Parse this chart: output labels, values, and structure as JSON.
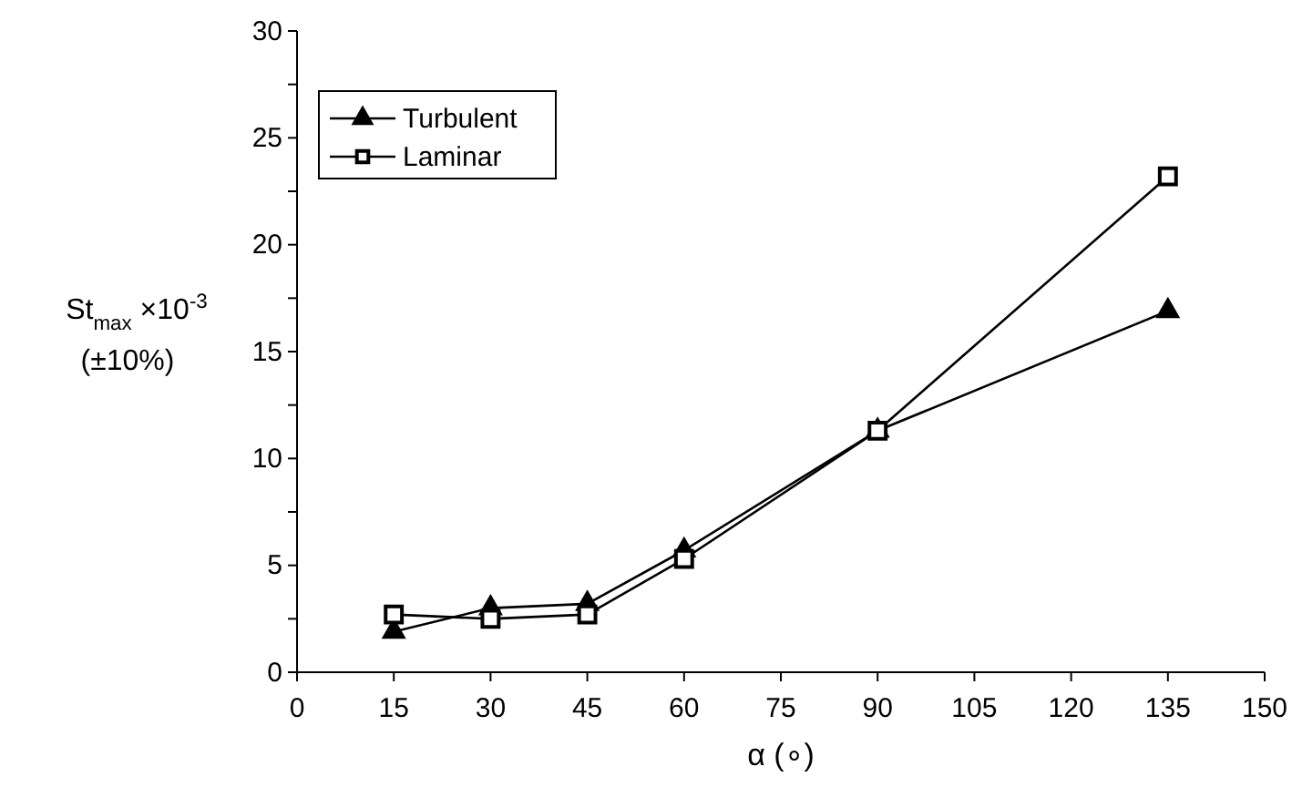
{
  "chart_data": {
    "type": "line",
    "xlabel": "α (∘)",
    "ylabel": "St$_{max}$ ×10$^{-3}$ (±10%)",
    "x": [
      15,
      30,
      45,
      60,
      90,
      135
    ],
    "series": [
      {
        "name": "Turbulent",
        "color": "#000000",
        "marker": "triangle",
        "values": [
          1.9,
          3.0,
          3.2,
          5.7,
          11.3,
          16.9
        ]
      },
      {
        "name": "Laminar",
        "color": "#000000",
        "marker": "square",
        "values": [
          2.7,
          2.5,
          2.7,
          5.3,
          11.3,
          23.2
        ]
      }
    ],
    "xlim": [
      0,
      150
    ],
    "xticks": [
      0,
      15,
      30,
      45,
      60,
      75,
      90,
      105,
      120,
      135,
      150
    ],
    "ylim": [
      0,
      30
    ],
    "yticks": [
      0,
      {
        "value": 2.5,
        "label": null
      },
      5,
      {
        "value": 7.5,
        "label": null
      },
      10,
      {
        "value": 12.5,
        "label": null
      },
      15,
      {
        "value": 17.5,
        "label": null
      },
      20,
      {
        "value": 22.5,
        "label": null
      },
      25,
      {
        "value": 27.5,
        "label": null
      },
      30
    ],
    "grid": false,
    "legend": "top left",
    "line_style": "solid"
  }
}
